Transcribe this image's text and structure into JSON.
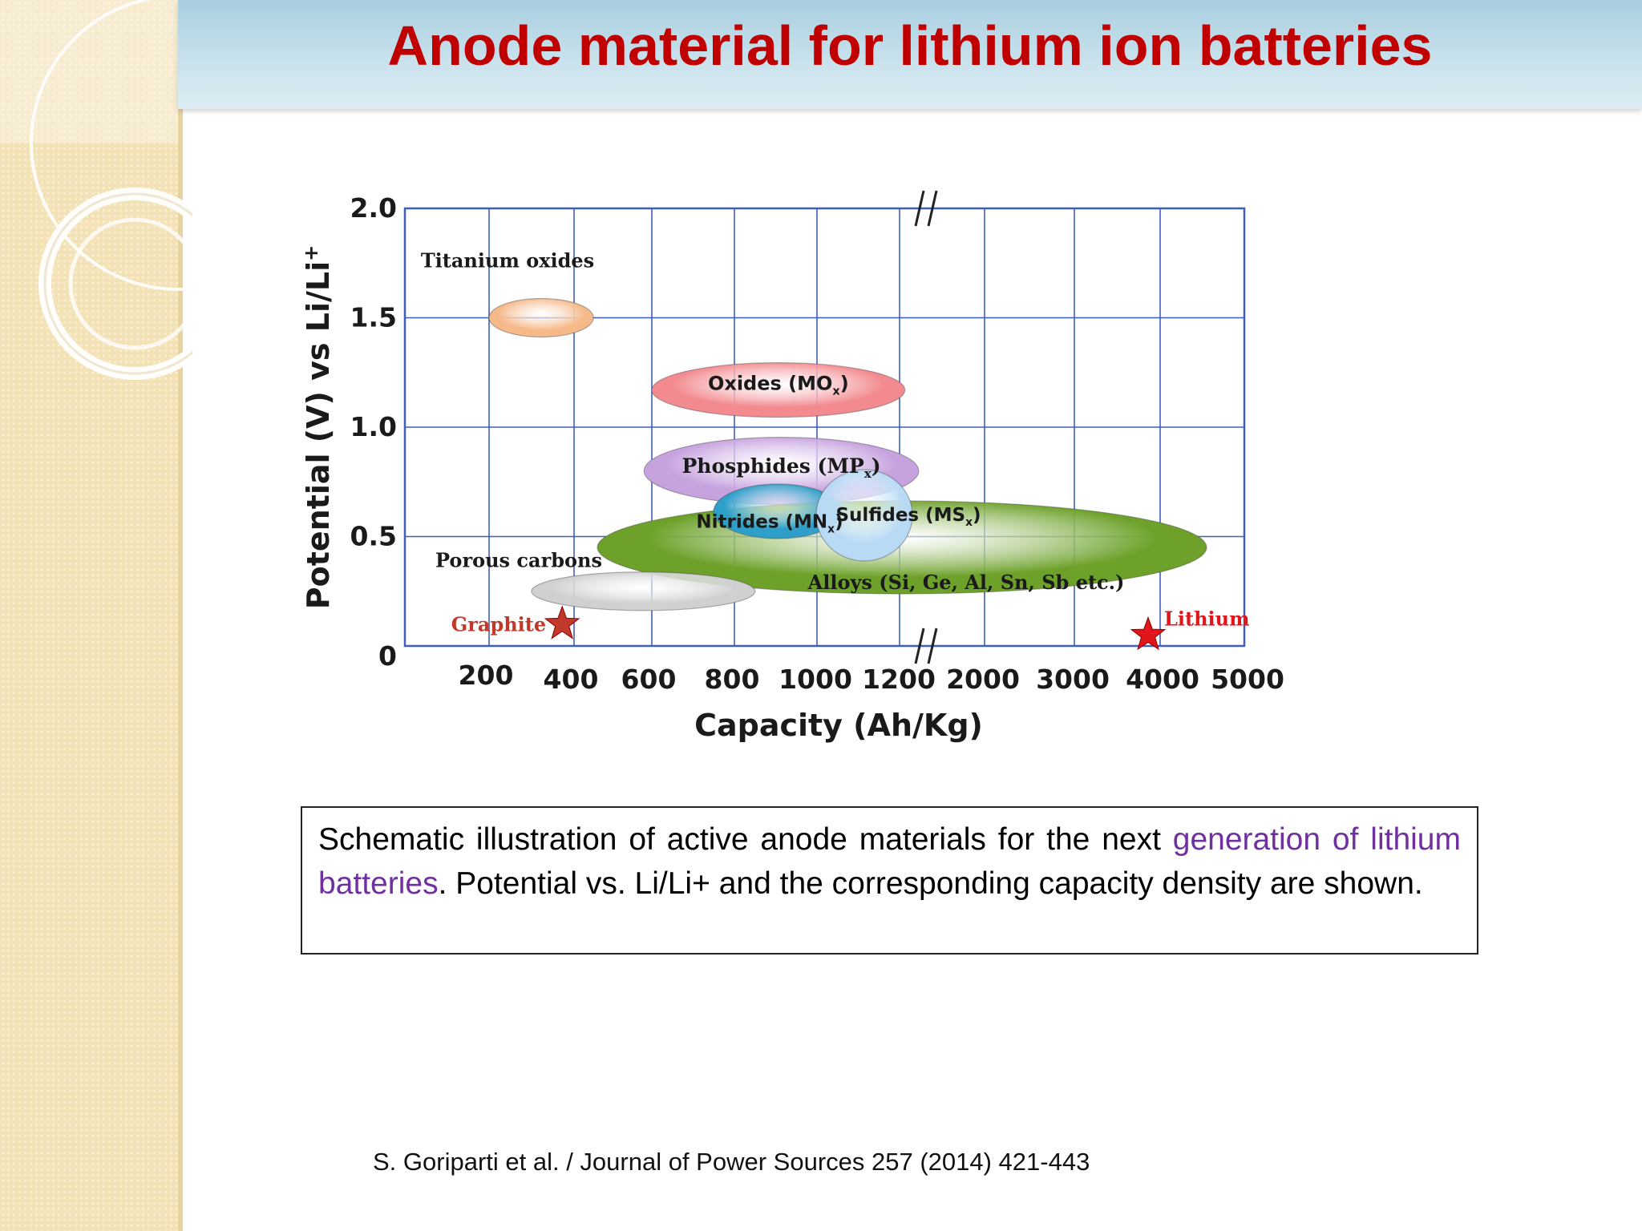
{
  "slide": {
    "title": "Anode material for lithium ion batteries",
    "caption": {
      "part1": "Schematic illustration of active anode materials for the next ",
      "highlight": "generation of lithium batteries",
      "part2": ". Potential vs. Li/Li+ and the corresponding capacity density are shown."
    },
    "citation": "S. Goriparti et al. / Journal of Power Sources 257 (2014) 421-443"
  },
  "colors": {
    "title": "#c00000",
    "accent": "#7030a0",
    "grid": "#3f5fbf"
  },
  "chart_data": {
    "type": "scatter",
    "xlabel": "Capacity (Ah/Kg)",
    "ylabel": "Potential (V) vs Li/Li",
    "ylabel_sup": "+",
    "x_ticks": [
      "200",
      "400",
      "600",
      "800",
      "1000",
      "1200",
      "2000",
      "3000",
      "4000",
      "5000"
    ],
    "y_ticks": [
      "0",
      "0.5",
      "1.0",
      "1.5",
      "2.0"
    ],
    "ylim": [
      0,
      2.0
    ],
    "x_axis_break": "between 1200 and 2000",
    "grid": true,
    "regions": [
      {
        "label": "Titanium oxides",
        "sub": "",
        "x_range": [
          200,
          450
        ],
        "y_center": 1.5,
        "color": "#f6b98a"
      },
      {
        "label": "Oxides (MO",
        "sub": "x",
        "x_range": [
          600,
          1250
        ],
        "y_center": 1.17,
        "color": "#f28a8f"
      },
      {
        "label": "Phosphides (MP",
        "sub": "x",
        "x_range": [
          580,
          1380
        ],
        "y_center": 0.8,
        "color": "#c6a2df"
      },
      {
        "label": "Alloys (Si, Ge, Al, Sn, Sb etc.)",
        "sub": "",
        "x_range": [
          550,
          3900
        ],
        "y_center": 0.45,
        "color": "#6da12a"
      },
      {
        "label": "Nitrides (MN",
        "sub": "x",
        "x_range": [
          800,
          1070
        ],
        "y_center": 0.55,
        "color": "#2e9fc8"
      },
      {
        "label": "Sulfides (MS",
        "sub": "x",
        "x_range": [
          1000,
          1200
        ],
        "y_center": 0.58,
        "color": "#b8daf5"
      },
      {
        "label": "Porous carbons",
        "sub": "",
        "x_range": [
          300,
          850
        ],
        "y_center": 0.25,
        "color": "#d0d0d0"
      }
    ],
    "points": [
      {
        "label": "Graphite",
        "x": 372,
        "y": 0.1,
        "color": "#c0392b"
      },
      {
        "label": "Lithium",
        "x": 3860,
        "y": 0.05,
        "color": "#e0161b"
      }
    ]
  }
}
